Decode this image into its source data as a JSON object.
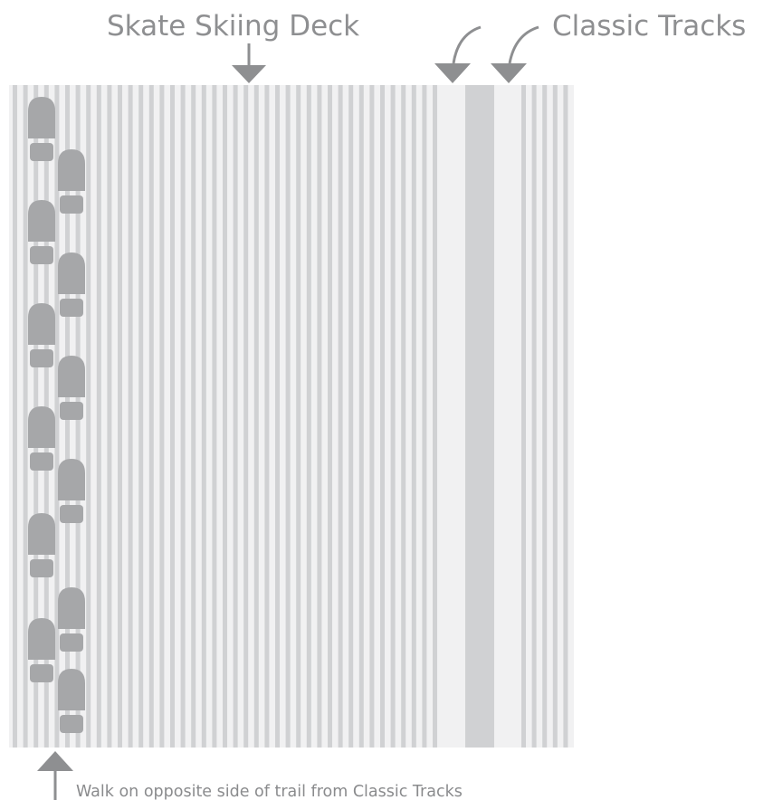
{
  "labels": {
    "skate_deck": "Skate Skiing Deck",
    "classic_tracks": "Classic Tracks",
    "walk_note": "Walk on opposite side of trail from Classic Tracks"
  },
  "colors": {
    "background": "#ffffff",
    "trail_base": "#f1f1f2",
    "groove_stripe": "#d0d1d3",
    "classic_track": "#d0d1d3",
    "footprint": "#a6a7a9",
    "arrow": "#8e8f91",
    "text": "#8e8f91"
  },
  "icons": {
    "footprint": "boot-print-icon",
    "pointer": "arrow-down-icon",
    "pointer_up": "arrow-up-icon"
  }
}
